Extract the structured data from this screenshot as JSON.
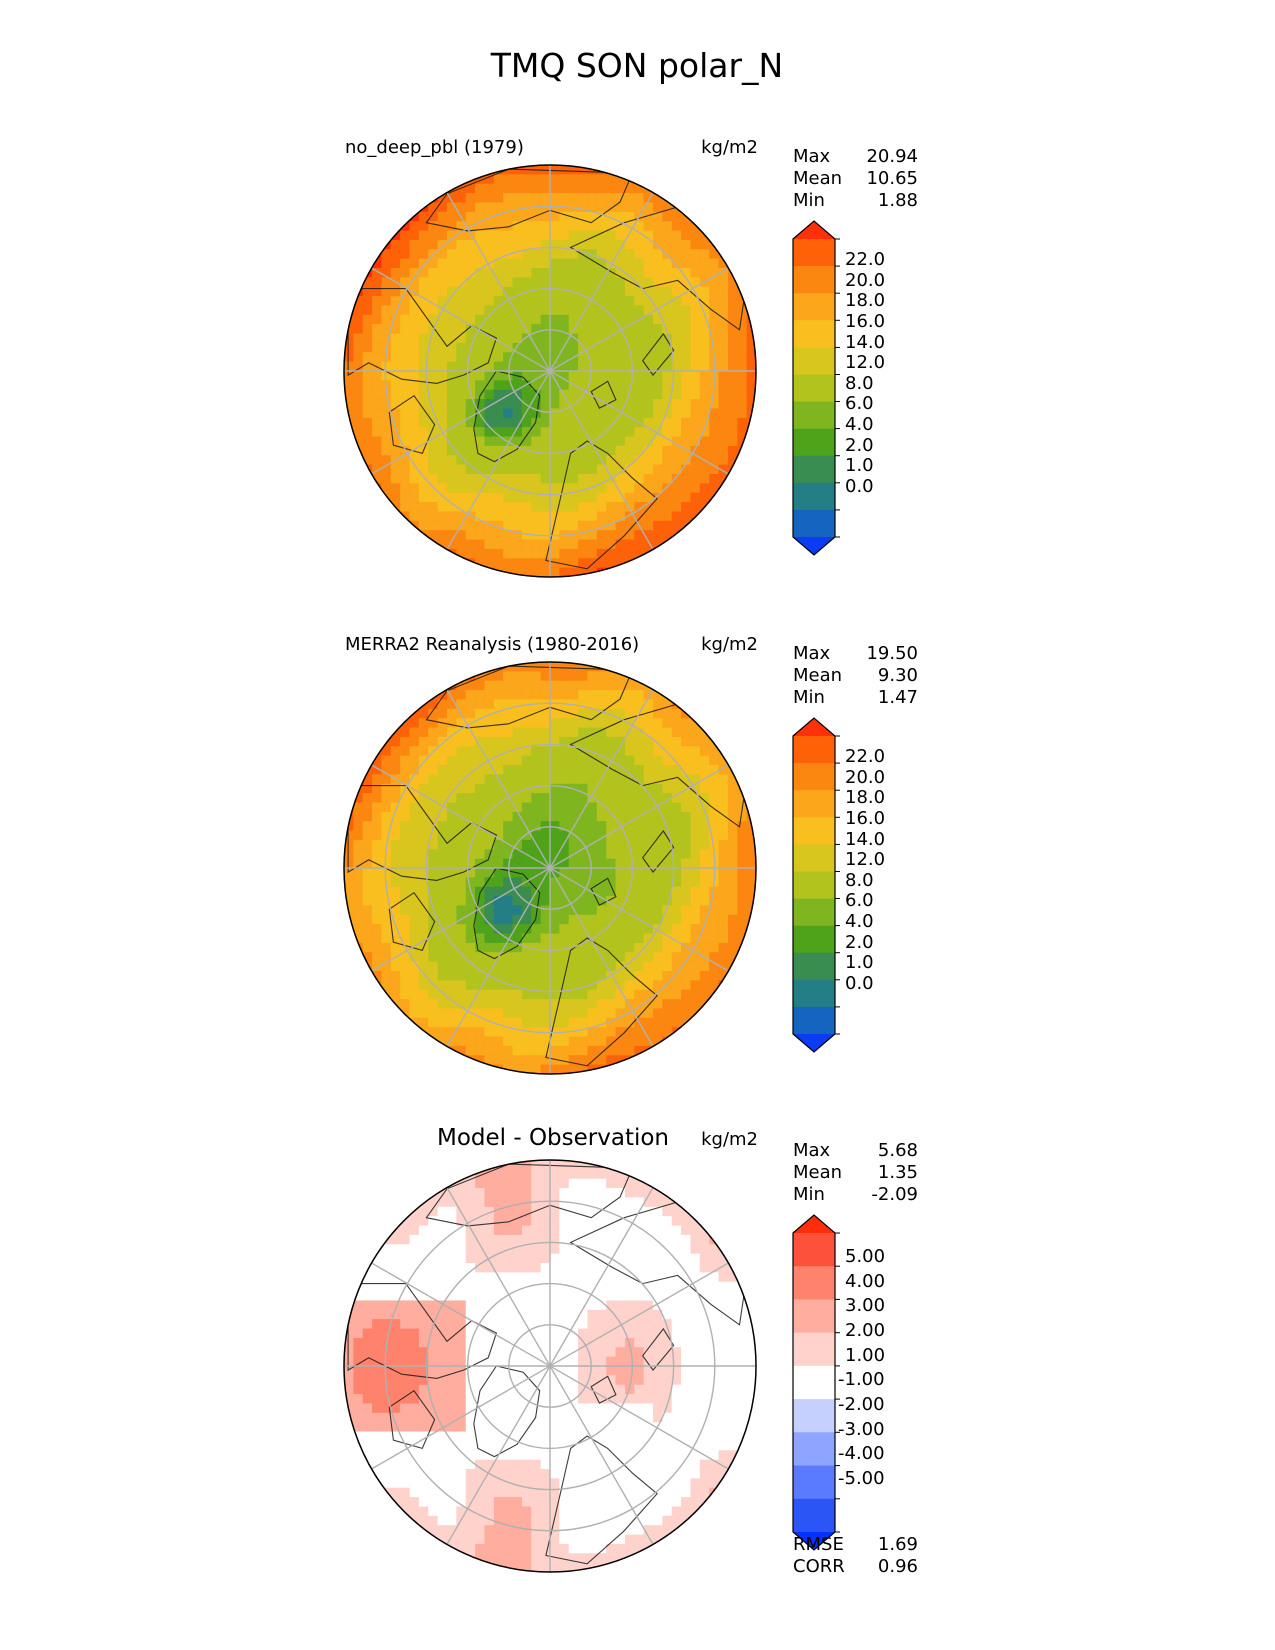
{
  "figure": {
    "title": "TMQ SON polar_N"
  },
  "chart_data": [
    {
      "type": "heatmap",
      "projection": "north-polar-stereographic",
      "title": "no_deep_pbl (1979)",
      "units": "kg/m2",
      "stats": [
        {
          "label": "Max",
          "value": "20.94"
        },
        {
          "label": "Mean",
          "value": "10.65"
        },
        {
          "label": "Min",
          "value": "1.88"
        }
      ],
      "colorbar": {
        "ticks": [
          "22.0",
          "20.0",
          "18.0",
          "16.0",
          "14.0",
          "12.0",
          "8.0",
          "6.0",
          "4.0",
          "2.0",
          "1.0",
          "0.0"
        ],
        "colors": [
          "#0b3cf5",
          "#1565c0",
          "#247e86",
          "#3a8d50",
          "#4ea31a",
          "#7fb620",
          "#b3c31d",
          "#d8c61e",
          "#f8bf1e",
          "#fba61b",
          "#fc8710",
          "#fd6209",
          "#ff310a"
        ]
      },
      "field": {
        "pole": 7,
        "lat_min": 1.9,
        "lat_max": 20.5,
        "dipole": 1.4
      }
    },
    {
      "type": "heatmap",
      "projection": "north-polar-stereographic",
      "title": "MERRA2 Reanalysis (1980-2016)",
      "units": "kg/m2",
      "stats": [
        {
          "label": "Max",
          "value": "19.50"
        },
        {
          "label": "Mean",
          "value": "9.30"
        },
        {
          "label": "Min",
          "value": "1.47"
        }
      ],
      "colorbar": {
        "ticks": [
          "22.0",
          "20.0",
          "18.0",
          "16.0",
          "14.0",
          "12.0",
          "8.0",
          "6.0",
          "4.0",
          "2.0",
          "1.0",
          "0.0"
        ],
        "colors": [
          "#0b3cf5",
          "#1565c0",
          "#247e86",
          "#3a8d50",
          "#4ea31a",
          "#7fb620",
          "#b3c31d",
          "#d8c61e",
          "#f8bf1e",
          "#fba61b",
          "#fc8710",
          "#fd6209",
          "#ff310a"
        ]
      },
      "field": {
        "pole": 5.5,
        "lat_min": 1.5,
        "lat_max": 19.0,
        "dipole": 1.6
      }
    },
    {
      "type": "heatmap",
      "projection": "north-polar-stereographic",
      "title": "Model - Observation",
      "units": "kg/m2",
      "stats": [
        {
          "label": "Max",
          "value": "5.68"
        },
        {
          "label": "Mean",
          "value": "1.35"
        },
        {
          "label": "Min",
          "value": "-2.09"
        }
      ],
      "colorbar": {
        "ticks": [
          "5.00",
          "4.00",
          "3.00",
          "2.00",
          "1.00",
          "-1.00",
          "-2.00",
          "-3.00",
          "-4.00",
          "-5.00"
        ],
        "colors": [
          "#0433ff",
          "#2b55f5",
          "#5a7bff",
          "#8ea4ff",
          "#c5d0ff",
          "#ffffff",
          "#ffd3cc",
          "#ffad9e",
          "#ff826c",
          "#fd5239",
          "#ff2d0a"
        ]
      },
      "field": {
        "pole": 0.4,
        "lat_min": -0.5,
        "lat_max": 5.0,
        "dipole": 0.9
      }
    }
  ],
  "error_stats": [
    {
      "label": "RMSE",
      "value": "1.69"
    },
    {
      "label": "CORR",
      "value": "0.96"
    }
  ]
}
